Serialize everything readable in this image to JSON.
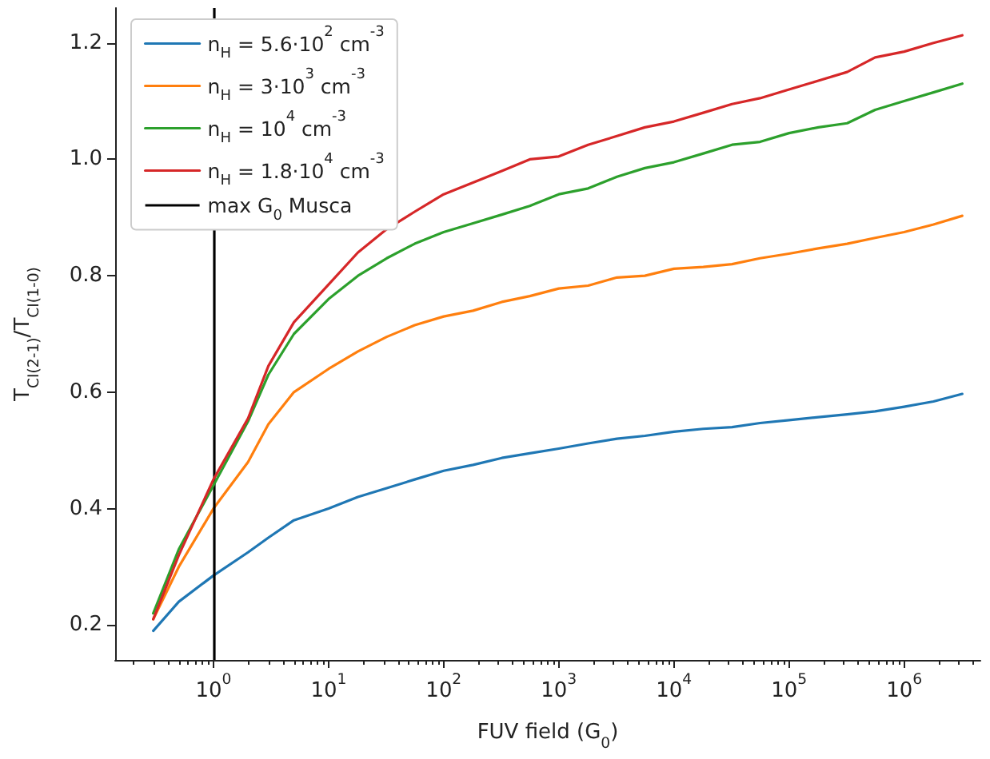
{
  "chart_data": {
    "type": "line",
    "xlabel": "FUV field (G$_{0}$)",
    "ylabel": "T$_{CI(2-1)}$/T$_{CI(1-0)}$",
    "log": "x",
    "x": [
      0.3,
      0.5,
      1,
      2,
      3,
      5,
      10,
      18,
      32,
      56,
      100,
      180,
      320,
      560,
      1000,
      1800,
      3200,
      5600,
      10000,
      18000,
      32000,
      56000,
      100000,
      180000,
      320000,
      560000,
      1000000,
      1800000,
      3200000
    ],
    "series": [
      {
        "name": "n$_{H}$ = 5.6·10$^{2}$ cm$^{-3}$",
        "color": "#1f77b4",
        "values": [
          0.19,
          0.24,
          0.285,
          0.325,
          0.35,
          0.38,
          0.4,
          0.42,
          0.435,
          0.45,
          0.465,
          0.475,
          0.487,
          0.495,
          0.503,
          0.512,
          0.52,
          0.525,
          0.532,
          0.537,
          0.54,
          0.547,
          0.552,
          0.557,
          0.562,
          0.567,
          0.575,
          0.584,
          0.597
        ]
      },
      {
        "name": "n$_{H}$ = 3·10$^{3}$ cm$^{-3}$",
        "color": "#ff7f0e",
        "values": [
          0.21,
          0.3,
          0.4,
          0.48,
          0.545,
          0.6,
          0.64,
          0.67,
          0.695,
          0.715,
          0.73,
          0.74,
          0.755,
          0.765,
          0.778,
          0.783,
          0.797,
          0.8,
          0.812,
          0.815,
          0.82,
          0.83,
          0.838,
          0.847,
          0.855,
          0.865,
          0.875,
          0.888,
          0.903
        ]
      },
      {
        "name": "n$_{H}$ = 10$^{4}$ cm$^{-3}$",
        "color": "#2ca02c",
        "values": [
          0.22,
          0.33,
          0.44,
          0.55,
          0.63,
          0.7,
          0.76,
          0.8,
          0.83,
          0.855,
          0.875,
          0.89,
          0.905,
          0.92,
          0.94,
          0.95,
          0.97,
          0.985,
          0.995,
          1.01,
          1.025,
          1.03,
          1.045,
          1.055,
          1.062,
          1.085,
          1.1,
          1.115,
          1.13
        ]
      },
      {
        "name": "n$_{H}$ = 1.8·10$^{4}$ cm$^{-3}$",
        "color": "#d62728",
        "values": [
          0.21,
          0.32,
          0.45,
          0.555,
          0.645,
          0.72,
          0.785,
          0.84,
          0.88,
          0.91,
          0.94,
          0.96,
          0.98,
          1.0,
          1.005,
          1.025,
          1.04,
          1.055,
          1.065,
          1.08,
          1.095,
          1.105,
          1.12,
          1.135,
          1.15,
          1.175,
          1.185,
          1.2,
          1.213
        ]
      }
    ],
    "ref_lines": [
      {
        "axis": "x",
        "value": 1,
        "label": "max G$_{0}$ Musca",
        "color": "#000000"
      }
    ],
    "xlim": [
      0.14,
      4600000
    ],
    "xticks": [
      {
        "value": 1,
        "label": "10$^{0}$"
      },
      {
        "value": 10,
        "label": "10$^{1}$"
      },
      {
        "value": 100,
        "label": "10$^{2}$"
      },
      {
        "value": 1000,
        "label": "10$^{3}$"
      },
      {
        "value": 10000,
        "label": "10$^{4}$"
      },
      {
        "value": 100000,
        "label": "10$^{5}$"
      },
      {
        "value": 1000000,
        "label": "10$^{6}$"
      }
    ],
    "ylim": [
      0.14,
      1.26
    ],
    "yticks": [
      {
        "value": 0.2,
        "label": "0.2"
      },
      {
        "value": 0.4,
        "label": "0.4"
      },
      {
        "value": 0.6,
        "label": "0.6"
      },
      {
        "value": 0.8,
        "label": "0.8"
      },
      {
        "value": 1,
        "label": "1.0"
      },
      {
        "value": 1.2,
        "label": "1.2"
      }
    ],
    "grid": false,
    "legend": "top left",
    "marker": "none",
    "line_style": "solid"
  }
}
